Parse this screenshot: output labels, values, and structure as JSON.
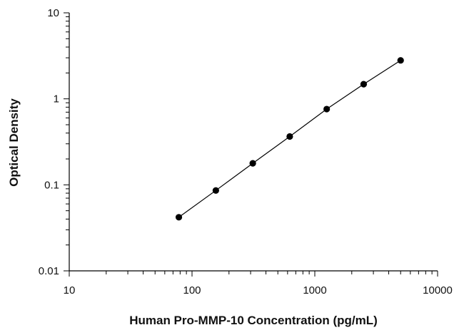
{
  "chart_data": {
    "type": "scatter",
    "title": "",
    "xlabel": "Human Pro-MMP-10 Concentration (pg/mL)",
    "ylabel": "Optical Density",
    "xscale": "log",
    "yscale": "log",
    "xlim": [
      10,
      10000
    ],
    "ylim": [
      0.01,
      10
    ],
    "x_ticks": [
      10,
      100,
      1000,
      10000
    ],
    "x_tick_labels": [
      "10",
      "100",
      "1000",
      "10000"
    ],
    "y_ticks": [
      0.01,
      0.1,
      1,
      10
    ],
    "y_tick_labels": [
      "0.01",
      "0.1",
      "1",
      "10"
    ],
    "grid": false,
    "legend": "none",
    "fit_line": true,
    "colors": {
      "marker": "#000000",
      "line": "#000000",
      "axis": "#000000"
    },
    "series": [
      {
        "x": [
          78.1,
          156.3,
          312.5,
          625,
          1250,
          2500,
          5000
        ],
        "y": [
          0.042,
          0.086,
          0.178,
          0.365,
          0.76,
          1.48,
          2.8
        ]
      }
    ]
  }
}
